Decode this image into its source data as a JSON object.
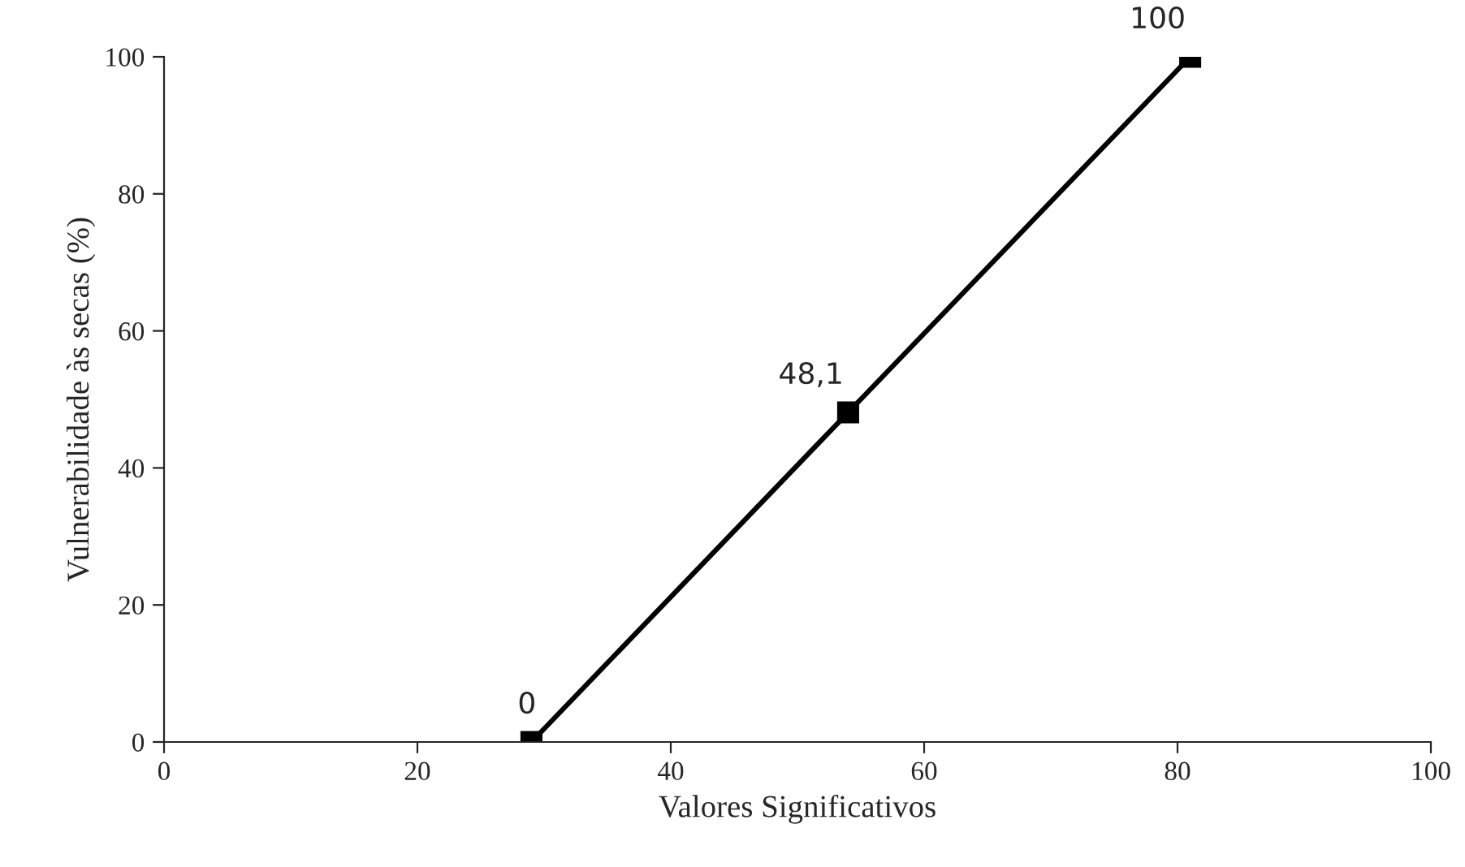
{
  "chart_data": {
    "type": "line",
    "xlabel": "Valores Significativos",
    "ylabel": "Vulnerabilidade às secas (%)",
    "x": [
      29,
      54,
      81
    ],
    "series": [
      {
        "color": "#000000",
        "values": [
          0,
          48.1,
          100
        ],
        "value_labels": [
          "0",
          "48,1",
          "100"
        ]
      }
    ],
    "xlim": [
      0,
      100
    ],
    "xticks": [
      0,
      20,
      40,
      60,
      80,
      100
    ],
    "ylim": [
      0,
      100
    ],
    "yticks": [
      0,
      20,
      40,
      60,
      80,
      100
    ],
    "marker": "square",
    "line_style": "solid",
    "grid": false,
    "legend": false
  }
}
